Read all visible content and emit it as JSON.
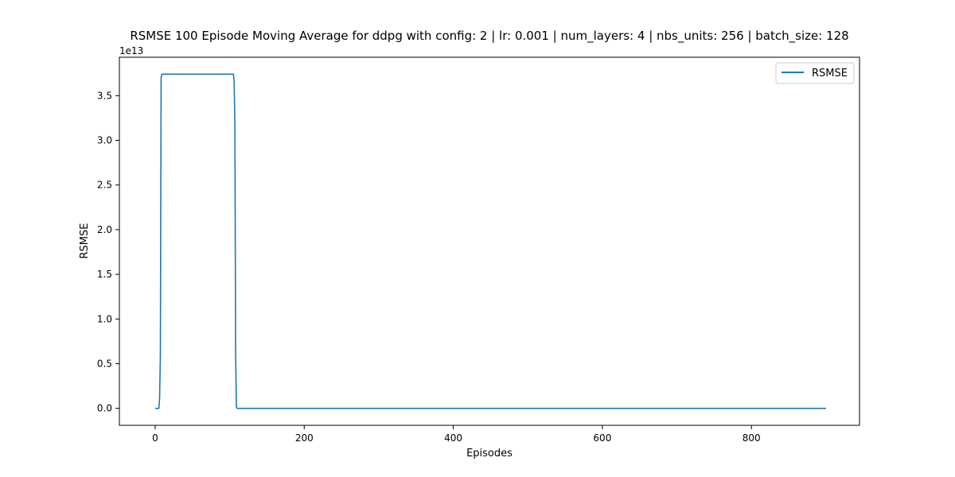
{
  "chart_data": {
    "type": "line",
    "title": "RSMSE 100 Episode Moving Average for ddpg with config: 2 | lr: 0.001 | num_layers: 4 | nbs_units: 256 | batch_size: 128",
    "xlabel": "Episodes",
    "ylabel": "RSMSE",
    "y_offset_label": "1e13",
    "xlim": [
      -48,
      945
    ],
    "ylim": [
      -0.19,
      3.93
    ],
    "x_ticks": [
      0,
      200,
      400,
      600,
      800
    ],
    "x_tick_labels": [
      "0",
      "200",
      "400",
      "600",
      "800"
    ],
    "y_ticks": [
      0.0,
      0.5,
      1.0,
      1.5,
      2.0,
      2.5,
      3.0,
      3.5
    ],
    "y_tick_labels": [
      "0.0",
      "0.5",
      "1.0",
      "1.5",
      "2.0",
      "2.5",
      "3.0",
      "3.5"
    ],
    "grid": false,
    "legend_position": "top-right",
    "series": [
      {
        "name": "RSMSE",
        "color": "#1f77b4",
        "x": [
          0,
          5,
          6,
          7,
          8,
          9,
          10,
          105,
          106,
          107,
          108,
          109,
          110,
          900
        ],
        "y": [
          0.0,
          0.0,
          0.12,
          0.6,
          3.7,
          3.74,
          3.74,
          3.74,
          3.65,
          3.15,
          0.6,
          0.02,
          0.0,
          0.0
        ]
      }
    ]
  }
}
